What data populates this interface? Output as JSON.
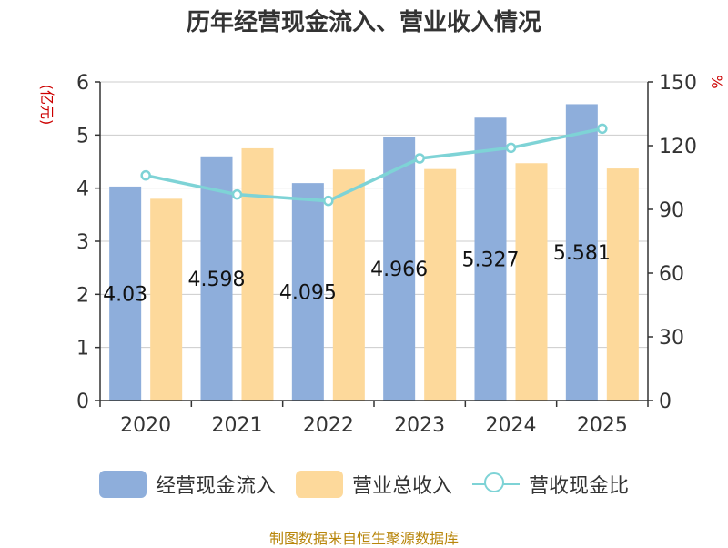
{
  "chart_data": {
    "type": "bar",
    "title": "历年经营现金流入、营业收入情况",
    "y_left_unit": "(亿元)",
    "y_right_unit": "%",
    "categories": [
      "2020",
      "2021",
      "2022",
      "2023",
      "2024",
      "2025"
    ],
    "ylim_left": [
      0,
      6
    ],
    "yticks_left": [
      "0",
      "1",
      "2",
      "3",
      "4",
      "5",
      "6"
    ],
    "ylim_right": [
      0,
      150
    ],
    "yticks_right": [
      "0",
      "30",
      "60",
      "90",
      "120",
      "150"
    ],
    "grid": true,
    "legend_position": "bottom",
    "series": [
      {
        "name": "经营现金流入",
        "kind": "bar",
        "axis": "left",
        "color": "#8eaedb",
        "values": [
          4.03,
          4.598,
          4.095,
          4.966,
          5.327,
          5.581
        ],
        "labels": [
          "4.03",
          "4.598",
          "4.095",
          "4.966",
          "5.327",
          "5.581"
        ]
      },
      {
        "name": "营业总收入",
        "kind": "bar",
        "axis": "left",
        "color": "#fdd99b",
        "values": [
          3.8,
          4.75,
          4.35,
          4.36,
          4.47,
          4.37
        ]
      },
      {
        "name": "营收现金比",
        "kind": "line",
        "axis": "right",
        "color": "#7ed3d6",
        "values": [
          106,
          97,
          94,
          114,
          119,
          128
        ]
      }
    ]
  },
  "footer": {
    "source": "制图数据来自恒生聚源数据库"
  }
}
